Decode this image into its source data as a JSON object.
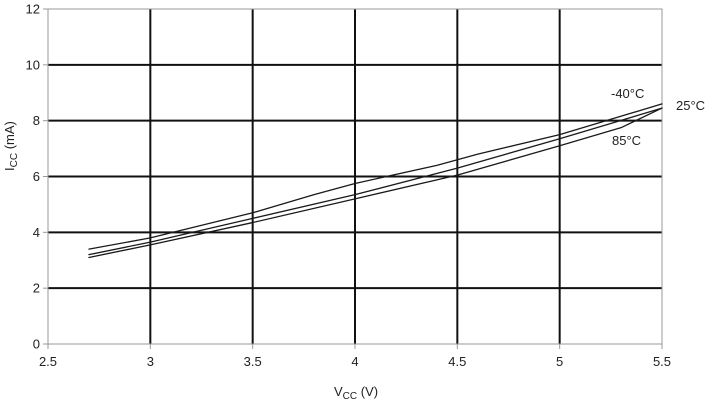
{
  "chart_data": {
    "type": "line",
    "title": "",
    "xlabel": {
      "main": "V",
      "sub": "CC",
      "unit": " (V)"
    },
    "ylabel": {
      "main": "I",
      "sub": "CC",
      "unit": " (mA)"
    },
    "xlim": [
      2.5,
      5.5
    ],
    "ylim": [
      0,
      12
    ],
    "x_ticks": [
      "2.5",
      "3",
      "3.5",
      "4",
      "4.5",
      "5",
      "5.5"
    ],
    "y_ticks": [
      "0",
      "2",
      "4",
      "6",
      "8",
      "10",
      "12"
    ],
    "grid": true,
    "legend": "inline labels",
    "series": [
      {
        "name": "-40°C",
        "x": [
          2.7,
          3.0,
          3.5,
          3.8,
          4.0,
          4.4,
          4.6,
          5.0,
          5.5
        ],
        "y": [
          3.4,
          3.8,
          4.7,
          5.35,
          5.75,
          6.4,
          6.8,
          7.5,
          8.6
        ]
      },
      {
        "name": "25°C",
        "x": [
          2.7,
          3.0,
          3.5,
          4.0,
          4.5,
          5.0,
          5.5
        ],
        "y": [
          3.2,
          3.65,
          4.5,
          5.35,
          6.3,
          7.35,
          8.45
        ]
      },
      {
        "name": "85°C",
        "x": [
          2.7,
          3.0,
          3.5,
          4.0,
          4.5,
          5.0,
          5.3,
          5.5
        ],
        "y": [
          3.1,
          3.55,
          4.35,
          5.2,
          6.05,
          7.1,
          7.75,
          8.45
        ]
      }
    ],
    "colors": {
      "line": "#1a1a1a",
      "grid": "#111111",
      "frame": "#999999",
      "background": "#ffffff"
    }
  }
}
